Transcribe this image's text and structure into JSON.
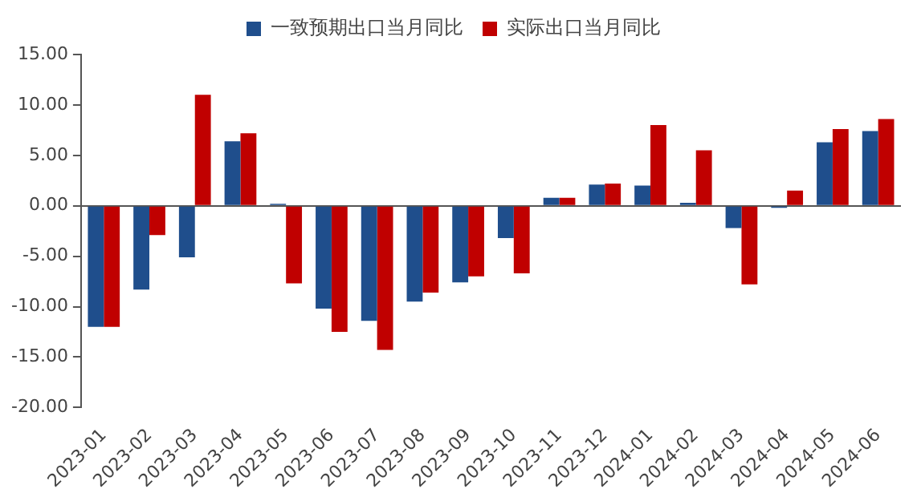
{
  "chart_data": {
    "type": "bar",
    "categories": [
      "2023-01",
      "2023-02",
      "2023-03",
      "2023-04",
      "2023-05",
      "2023-06",
      "2023-07",
      "2023-08",
      "2023-09",
      "2023-10",
      "2023-11",
      "2023-12",
      "2024-01",
      "2024-02",
      "2024-03",
      "2024-04",
      "2024-05",
      "2024-06"
    ],
    "series": [
      {
        "name": "一致预期出口当月同比",
        "color": "#1f4e8c",
        "values": [
          -12.0,
          -8.3,
          -5.1,
          6.4,
          0.2,
          -10.2,
          -11.4,
          -9.5,
          -7.6,
          -3.2,
          0.8,
          2.1,
          2.0,
          0.3,
          -2.2,
          -0.2,
          6.3,
          7.4
        ]
      },
      {
        "name": "实际出口当月同比",
        "color": "#c00000",
        "values": [
          -12.0,
          -2.9,
          11.0,
          7.2,
          -7.7,
          -12.5,
          -14.3,
          -8.6,
          -7.0,
          -6.7,
          0.8,
          2.2,
          8.0,
          5.5,
          -7.8,
          1.5,
          7.6,
          8.6
        ]
      }
    ],
    "ylim": [
      -20,
      15
    ],
    "yticks": [
      {
        "value": -20,
        "label": "-20.00"
      },
      {
        "value": -15,
        "label": "-15.00"
      },
      {
        "value": -10,
        "label": "-10.00"
      },
      {
        "value": -5,
        "label": "-5.00"
      },
      {
        "value": 0,
        "label": "0.00"
      },
      {
        "value": 5,
        "label": "5.00"
      },
      {
        "value": 10,
        "label": "10.00"
      },
      {
        "value": 15,
        "label": "15.00"
      }
    ],
    "legend": "top"
  }
}
